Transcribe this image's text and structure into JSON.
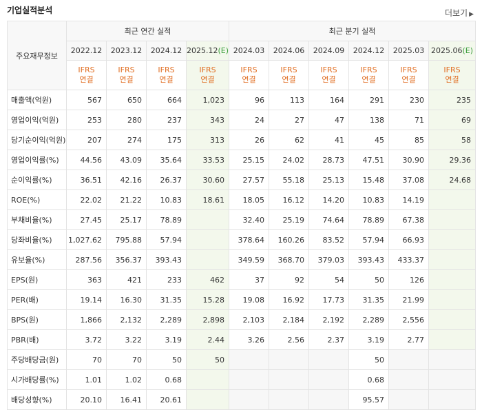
{
  "title": "기업실적분석",
  "more_label": "더보기",
  "more_icon": "chevron-right-icon",
  "header": {
    "label": "주요재무정보",
    "annual_group": "최근 연간 실적",
    "quarter_group": "최근 분기 실적",
    "annual_periods": [
      "2022.12",
      "2023.12",
      "2024.12",
      "2025.12"
    ],
    "annual_est_mark": "(E)",
    "quarter_periods": [
      "2024.03",
      "2024.06",
      "2024.09",
      "2024.12",
      "2025.03",
      "2025.06"
    ],
    "quarter_est_mark": "(E)",
    "standard_top": "IFRS",
    "standard_bottom": "연결"
  },
  "rows": [
    {
      "label": "매출액(억원)",
      "values": [
        "567",
        "650",
        "664",
        "1,023",
        "96",
        "113",
        "164",
        "291",
        "230",
        "235"
      ]
    },
    {
      "label": "영업이익(억원)",
      "values": [
        "253",
        "280",
        "237",
        "343",
        "24",
        "27",
        "47",
        "138",
        "71",
        "69"
      ]
    },
    {
      "label": "당기순이익(억원)",
      "values": [
        "207",
        "274",
        "175",
        "313",
        "26",
        "62",
        "41",
        "45",
        "85",
        "58"
      ]
    },
    {
      "label": "영업이익률(%)",
      "values": [
        "44.56",
        "43.09",
        "35.64",
        "33.53",
        "25.15",
        "24.02",
        "28.73",
        "47.51",
        "30.90",
        "29.36"
      ]
    },
    {
      "label": "순이익률(%)",
      "values": [
        "36.51",
        "42.16",
        "26.37",
        "30.60",
        "27.57",
        "55.18",
        "25.13",
        "15.48",
        "37.08",
        "24.68"
      ]
    },
    {
      "label": "ROE(%)",
      "values": [
        "22.02",
        "21.22",
        "10.83",
        "18.61",
        "18.05",
        "16.12",
        "14.20",
        "10.83",
        "14.19",
        ""
      ]
    },
    {
      "label": "부채비율(%)",
      "values": [
        "27.45",
        "25.17",
        "78.89",
        "",
        "32.40",
        "25.19",
        "74.64",
        "78.89",
        "67.38",
        ""
      ]
    },
    {
      "label": "당좌비율(%)",
      "values": [
        "1,027.62",
        "795.88",
        "57.94",
        "",
        "378.64",
        "160.26",
        "83.52",
        "57.94",
        "66.93",
        ""
      ]
    },
    {
      "label": "유보율(%)",
      "values": [
        "287.56",
        "356.37",
        "393.43",
        "",
        "349.59",
        "368.70",
        "379.03",
        "393.43",
        "433.37",
        ""
      ]
    },
    {
      "label": "EPS(원)",
      "values": [
        "363",
        "421",
        "233",
        "462",
        "37",
        "92",
        "54",
        "50",
        "126",
        ""
      ]
    },
    {
      "label": "PER(배)",
      "values": [
        "19.14",
        "16.30",
        "31.35",
        "15.28",
        "19.08",
        "16.92",
        "17.73",
        "31.35",
        "21.99",
        ""
      ]
    },
    {
      "label": "BPS(원)",
      "values": [
        "1,866",
        "2,132",
        "2,289",
        "2,898",
        "2,103",
        "2,184",
        "2,192",
        "2,289",
        "2,556",
        ""
      ]
    },
    {
      "label": "PBR(배)",
      "values": [
        "3.72",
        "3.22",
        "3.19",
        "2.44",
        "3.26",
        "2.56",
        "2.37",
        "3.19",
        "2.77",
        ""
      ]
    },
    {
      "label": "주당배당금(원)",
      "values": [
        "70",
        "70",
        "50",
        "50",
        "",
        "",
        "",
        "50",
        "",
        ""
      ]
    },
    {
      "label": "시가배당률(%)",
      "values": [
        "1.01",
        "1.02",
        "0.68",
        "",
        "",
        "",
        "",
        "0.68",
        "",
        ""
      ]
    },
    {
      "label": "배당성향(%)",
      "values": [
        "20.10",
        "16.41",
        "20.61",
        "",
        "",
        "",
        "",
        "95.57",
        "",
        ""
      ]
    }
  ]
}
